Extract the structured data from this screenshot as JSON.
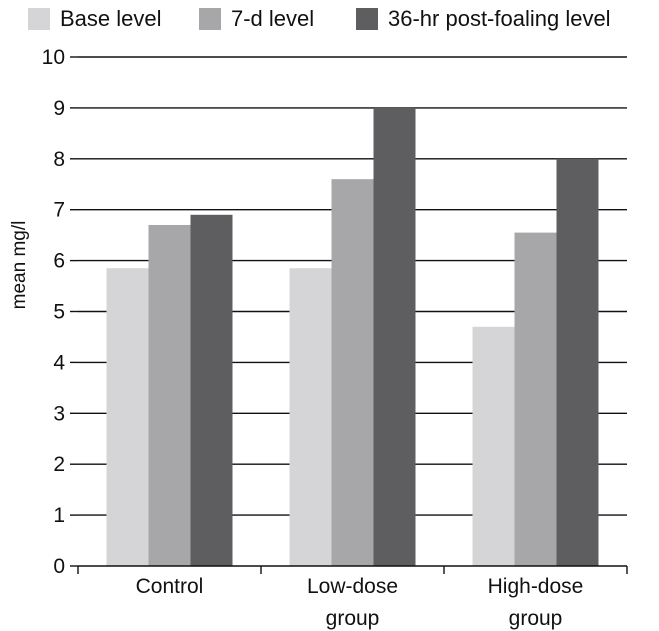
{
  "chart_data": {
    "type": "bar",
    "categories": [
      "Control",
      "Low-dose group",
      "High-dose group"
    ],
    "category_lines": [
      [
        "Control"
      ],
      [
        "Low-dose",
        "group"
      ],
      [
        "High-dose",
        "group"
      ]
    ],
    "series": [
      {
        "name": "Base level",
        "values": [
          5.85,
          5.85,
          4.7
        ],
        "color": "#d5d5d7"
      },
      {
        "name": "7-d level",
        "values": [
          6.7,
          7.6,
          6.55
        ],
        "color": "#a7a7a9"
      },
      {
        "name": "36-hr post-foaling level",
        "values": [
          6.9,
          9.0,
          8.0
        ],
        "color": "#5e5e60"
      }
    ],
    "ylabel": "mean mg/l",
    "ylim": [
      0,
      10
    ],
    "yticks": [
      0,
      1,
      2,
      3,
      4,
      5,
      6,
      7,
      8,
      9,
      10
    ],
    "grid": true,
    "legend": "top"
  }
}
